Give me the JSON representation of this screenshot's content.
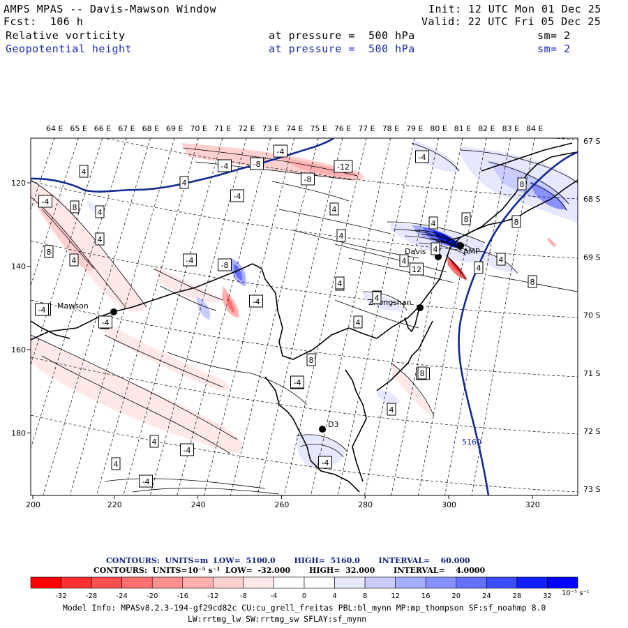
{
  "header": {
    "title": "AMPS MPAS -- Davis-Mawson Window",
    "forecast": "Fcst:  106 h",
    "init": "Init: 12 UTC Mon 01 Dec 25",
    "valid": "Valid: 22 UTC Fri 05 Dec 25",
    "field1": {
      "name": "Relative vorticity",
      "level": "at pressure =  500 hPa",
      "smooth": "sm= 2"
    },
    "field2": {
      "name": "Geopotential height",
      "level": "at pressure =  500 hPa",
      "smooth": "sm= 2"
    }
  },
  "map": {
    "top_lon_labels": [
      "64 E",
      "65 E",
      "66 E",
      "67 E",
      "68 E",
      "69 E",
      "70 E",
      "71 E",
      "72 E",
      "73 E",
      "74 E",
      "75 E",
      "76 E",
      "77 E",
      "78 E",
      "79 E",
      "80 E",
      "81 E",
      "82 E",
      "83 E",
      "84 E"
    ],
    "right_lat_labels": [
      "67 S",
      "68 S",
      "69 S",
      "70 S",
      "71 S",
      "72 S",
      "73 S"
    ],
    "x_ticks": [
      "200",
      "220",
      "240",
      "260",
      "280",
      "300",
      "320"
    ],
    "y_ticks": [
      "120",
      "140",
      "160",
      "180"
    ],
    "stations": [
      {
        "name": "Mawson"
      },
      {
        "name": "Davis"
      },
      {
        "name": "Zhongshan"
      },
      {
        "name": "AMP"
      },
      {
        "name": "D3"
      }
    ],
    "height_contour_label": "5160",
    "vort_labels": [
      "-4",
      "-4",
      "-8",
      "-12",
      "-8",
      "-4",
      "-4",
      "4",
      "4",
      "8",
      "4",
      "4",
      "8",
      "4",
      "-4",
      "-8",
      "-4",
      "4",
      "8",
      "-4",
      "4",
      "4",
      "8",
      "4",
      "4",
      "4",
      "12",
      "4",
      "4",
      "4",
      "8",
      "8",
      "8",
      "12",
      "4",
      "8",
      "-4",
      "-4",
      "4",
      "4",
      "-4",
      "4",
      "-4",
      "-4",
      "8",
      "-4",
      "-4",
      "4",
      "4",
      "-4"
    ]
  },
  "colorbar": {
    "labels": [
      "-32",
      "-28",
      "-24",
      "-20",
      "-16",
      "-12",
      "-8",
      "-4",
      "0",
      "4",
      "8",
      "12",
      "16",
      "20",
      "24",
      "28",
      "32"
    ],
    "units": "10⁻⁵ s⁻¹",
    "colors": [
      "#ff0000",
      "#ff3030",
      "#ff5050",
      "#ff7070",
      "#ff9090",
      "#ffb0b0",
      "#ffd0d0",
      "#ffe8e8",
      "#ffffff",
      "#ffffff",
      "#e6e8ff",
      "#c8ccff",
      "#a8aeff",
      "#8890ff",
      "#6470ff",
      "#3c4cff",
      "#1020ff",
      "#0000ff"
    ]
  },
  "contour_info": {
    "line1": "CONTOURS:  UNITS=m  LOW=  5100.0       HIGH=  5160.0       INTERVAL=    60.000",
    "line2": "CONTOURS:  UNITS=10⁻⁵ s⁻¹  LOW=  -32.000       HIGH=  32.000       INTERVAL=    4.0000"
  },
  "model_info": {
    "line1": "Model Info: MPASv8.2.3-194-gf29cd82c CU:cu_grell_freitas PBL:bl_mynn MP:mp_thompson SF:sf_noahmp 8.0",
    "line2": "LW:rrtmg_lw SW:rrtmg_sw SFLAY:sf_mynn"
  }
}
